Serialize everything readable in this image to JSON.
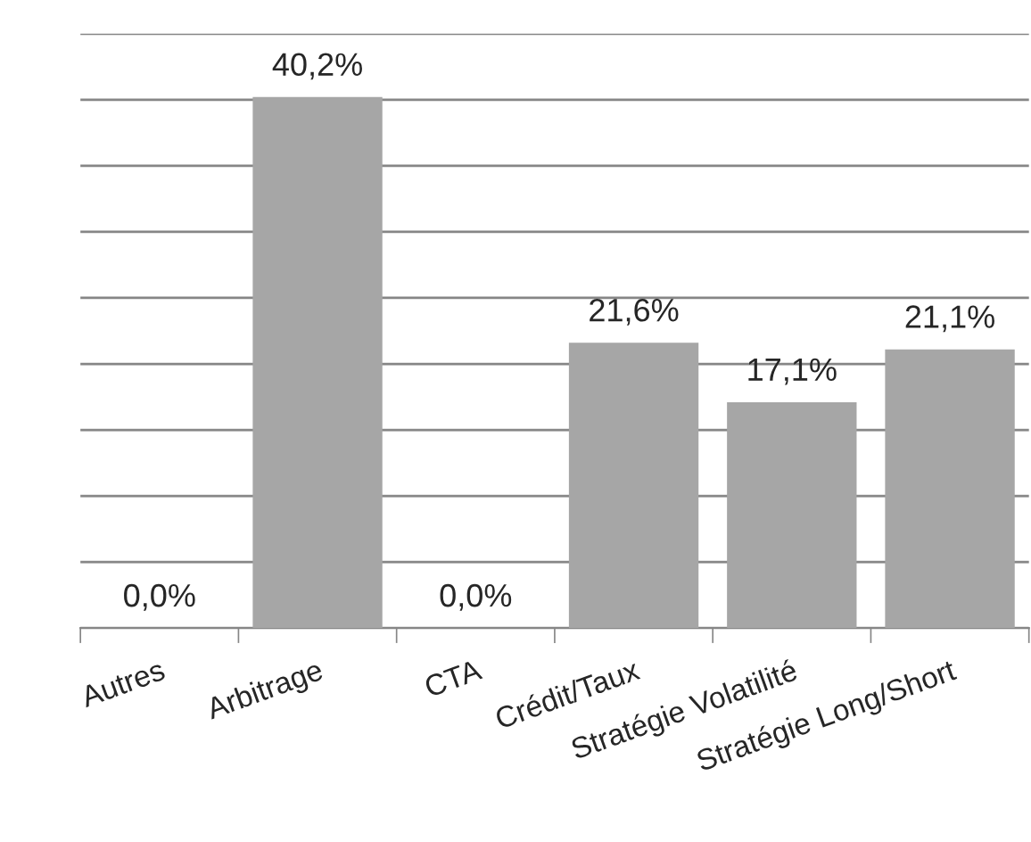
{
  "chart_data": {
    "type": "bar",
    "categories": [
      "Autres",
      "Arbitrage",
      "CTA",
      "Crédit/Taux",
      "Stratégie Volatilité",
      "Stratégie Long/Short"
    ],
    "values": [
      0,
      40.2,
      0,
      21.6,
      17.1,
      21.1
    ],
    "value_labels": [
      "0,0%",
      "40,2%",
      "0,0%",
      "21,6%",
      "17,1%",
      "21,1%"
    ],
    "color": "#a6a6a6",
    "ylim": [
      0,
      45
    ],
    "yticks": [
      {
        "value": 0,
        "label": null
      },
      {
        "value": 5,
        "label": null
      },
      {
        "value": 10,
        "label": null
      },
      {
        "value": 15,
        "label": null
      },
      {
        "value": 20,
        "label": null
      },
      {
        "value": 25,
        "label": null
      },
      {
        "value": 30,
        "label": null
      },
      {
        "value": 35,
        "label": null
      },
      {
        "value": 40,
        "label": null
      },
      {
        "value": 45,
        "label": null
      }
    ],
    "grid": "y",
    "tick_labels": "x"
  }
}
